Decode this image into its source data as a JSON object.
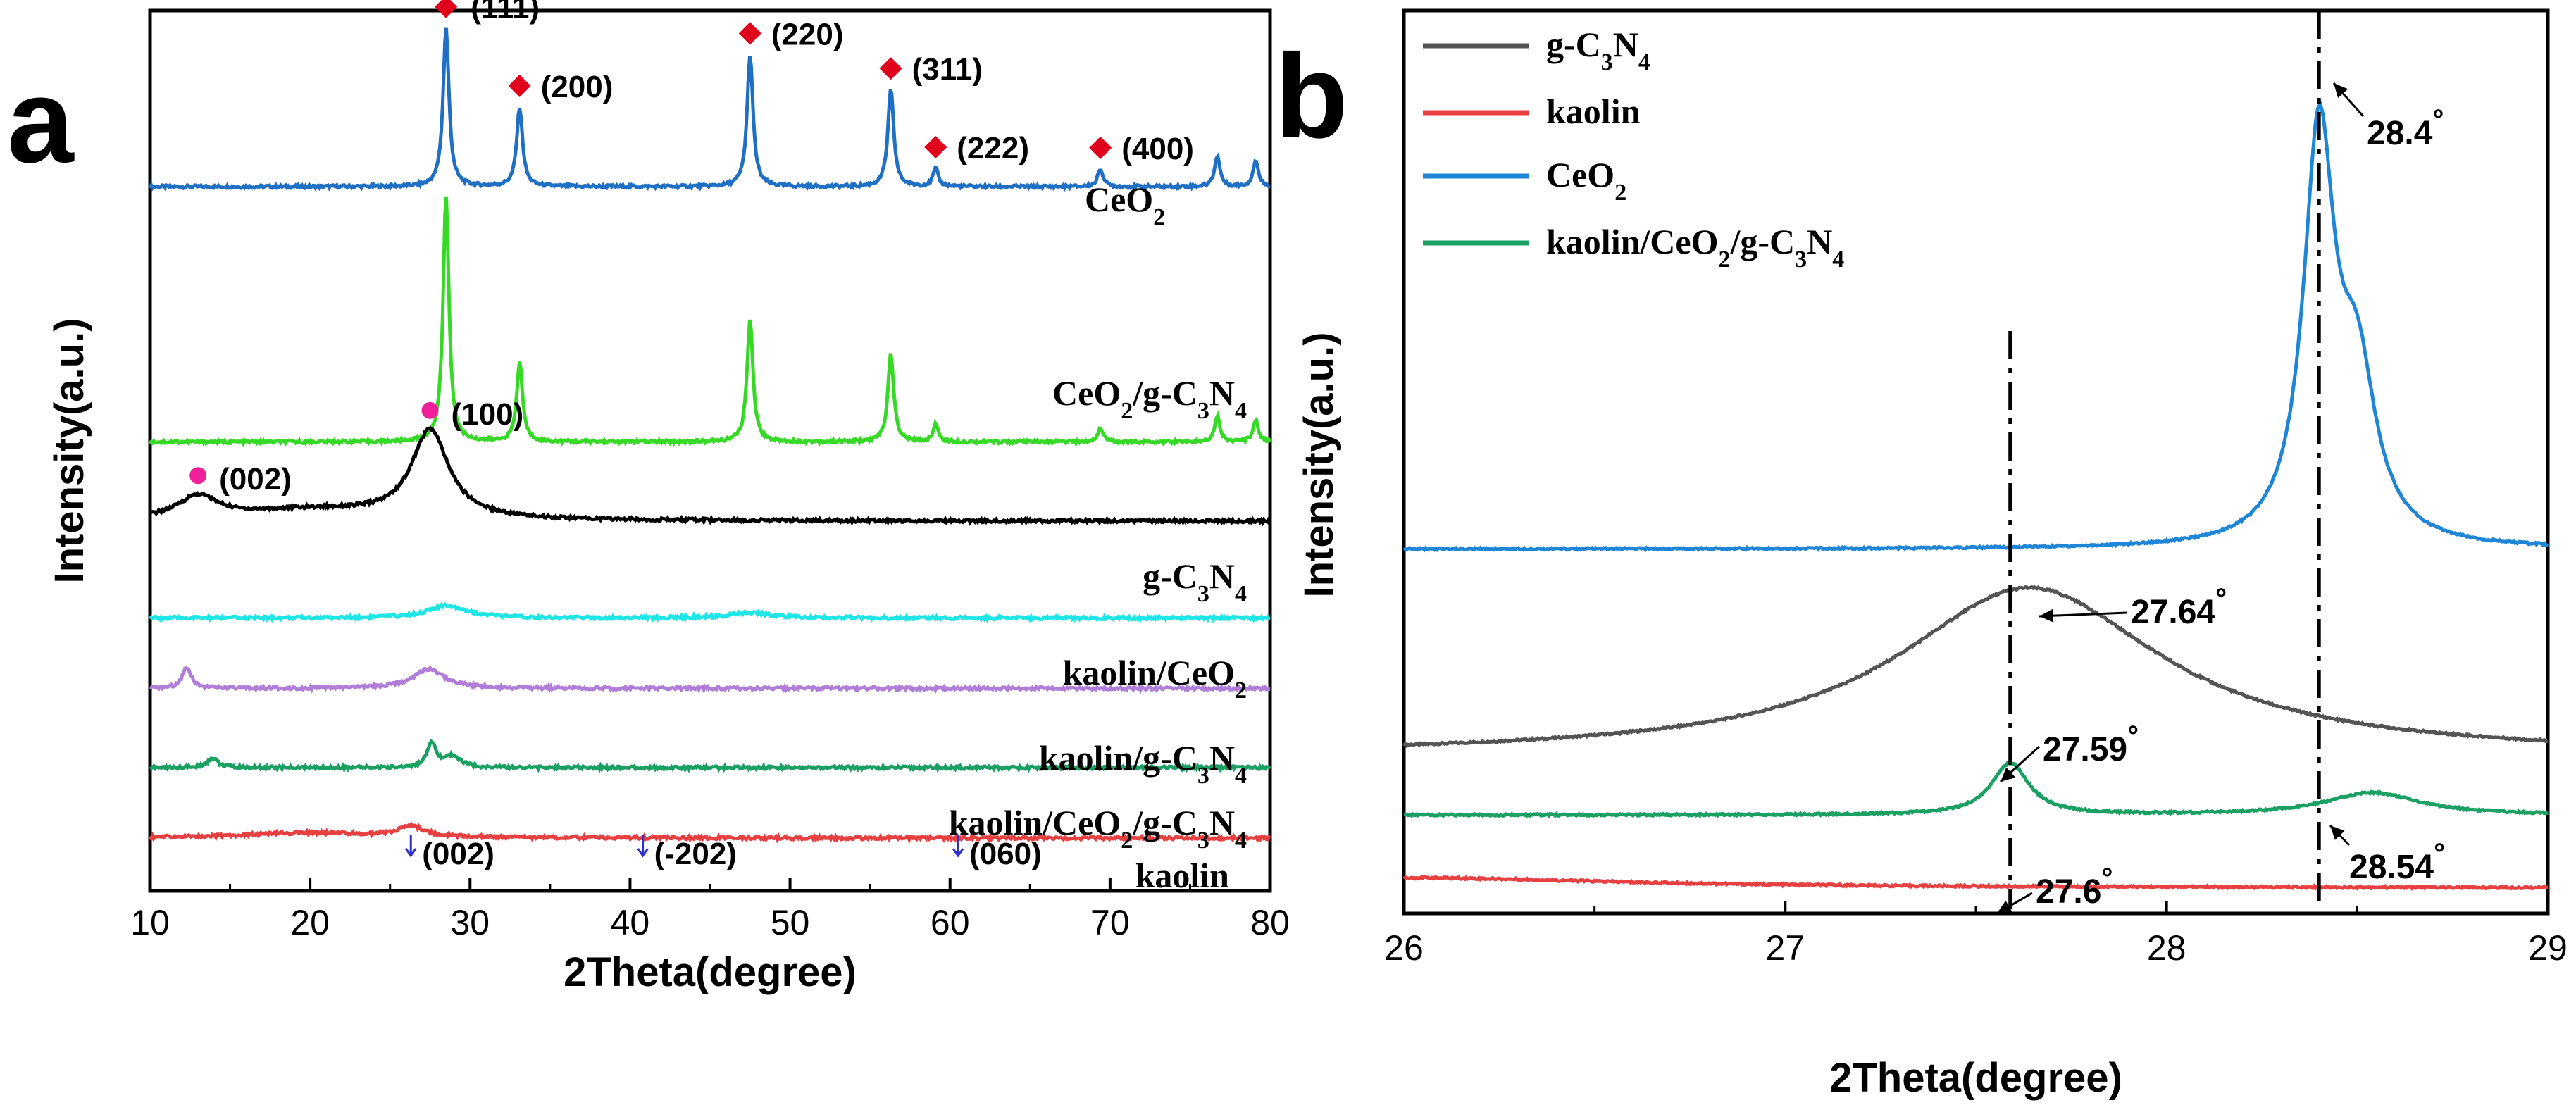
{
  "figure": {
    "panels": [
      "a",
      "b"
    ]
  },
  "chart_data": [
    {
      "panel": "a",
      "type": "line",
      "xlabel": "2Theta(degree)",
      "ylabel": "Intensity(a.u.)",
      "xlim": [
        10,
        80
      ],
      "xticks": [
        10,
        20,
        30,
        40,
        50,
        60,
        70,
        80
      ],
      "ylim": [
        0,
        100
      ],
      "series": [
        {
          "name": "CeO2",
          "label_main": "CeO",
          "label_sub": "2",
          "color": "#1f6fc4",
          "baseline": 80,
          "peaks": [
            [
              28.5,
              18,
              0.22
            ],
            [
              33.1,
              9,
              0.22
            ],
            [
              47.5,
              15,
              0.22
            ],
            [
              56.3,
              11,
              0.22
            ],
            [
              59.1,
              2,
              0.2
            ],
            [
              69.4,
              2,
              0.2
            ],
            [
              76.7,
              3.5,
              0.2
            ],
            [
              79.1,
              3,
              0.2
            ]
          ]
        },
        {
          "name": "CeO2/g-C3N4",
          "label_main": "CeO",
          "label_sub": "2",
          "label_tail": "/g-C",
          "label_sub2": "3",
          "label_tail2": "N",
          "label_sub3": "4",
          "color": "#35d926",
          "baseline": 51,
          "peaks": [
            [
              28.5,
              28,
              0.22
            ],
            [
              33.1,
              9,
              0.22
            ],
            [
              47.5,
              14,
              0.22
            ],
            [
              56.3,
              10,
              0.22
            ],
            [
              59.1,
              2,
              0.2
            ],
            [
              69.4,
              1.6,
              0.2
            ],
            [
              76.7,
              3,
              0.2
            ],
            [
              79.1,
              2.5,
              0.2
            ]
          ]
        },
        {
          "name": "g-C3N4",
          "color": "#000000",
          "baseline": 42,
          "peaks": [
            [
              13.0,
              2.5,
              1.5
            ],
            [
              20.0,
              1.2,
              6
            ],
            [
              27.5,
              10,
              1.4
            ]
          ]
        },
        {
          "name": "kaolin/CeO2",
          "color": "#1fe6e6",
          "baseline": 31,
          "peaks": [
            [
              28.6,
              1.4,
              1.5
            ],
            [
              47.5,
              0.6,
              1.5
            ]
          ]
        },
        {
          "name": "kaolin/g-C3N4",
          "color": "#b07ed8",
          "baseline": 23,
          "peaks": [
            [
              12.3,
              2.4,
              0.35
            ],
            [
              27.4,
              2.2,
              1.2
            ]
          ]
        },
        {
          "name": "kaolin/CeO2/g-C3N4",
          "color": "#1aa062",
          "baseline": 14,
          "peaks": [
            [
              13.9,
              1.1,
              0.4
            ],
            [
              27.6,
              2.6,
              0.35
            ],
            [
              28.9,
              1.3,
              0.6
            ]
          ]
        },
        {
          "name": "kaolin",
          "color": "#e84040",
          "baseline": 6,
          "peaks": [
            [
              20.0,
              0.6,
              5
            ],
            [
              26.3,
              1.2,
              1
            ]
          ]
        }
      ],
      "labels": {
        "ceo2": {
          "main": "CeO",
          "sub": "2"
        },
        "ceo2_gcn": {
          "main": "CeO",
          "sub1": "2",
          "mid": "/g-C",
          "sub2": "3",
          "mid2": "N",
          "sub3": "4"
        },
        "gcn": {
          "main": "g-C",
          "sub1": "3",
          "mid": "N",
          "sub2": "4"
        },
        "kaolin_ceo2": {
          "main": "kaolin/CeO",
          "sub1": "2"
        },
        "kaolin_gcn": {
          "main": "kaolin/g-C",
          "sub1": "3",
          "mid": "N",
          "sub2": "4"
        },
        "kaolin_ceo2_gcn": {
          "main": "kaolin/CeO",
          "sub1": "2",
          "mid": "/g-C",
          "sub2": "3",
          "mid2": "N",
          "sub3": "4"
        },
        "kaolin": "kaolin"
      },
      "annotations": {
        "ceo2_planes": [
          {
            "text": "(111)",
            "x": 28.5
          },
          {
            "text": "(200)",
            "x": 33.1
          },
          {
            "text": "(220)",
            "x": 47.5
          },
          {
            "text": "(311)",
            "x": 56.3
          },
          {
            "text": "(222)",
            "x": 59.1
          },
          {
            "text": "(400)",
            "x": 69.4
          }
        ],
        "gcn_planes": [
          {
            "text": "(002)",
            "x": 13.0
          },
          {
            "text": "(100)",
            "x": 27.5
          }
        ],
        "kaolin_planes": [
          {
            "text": "(002)",
            "x": 26.3
          },
          {
            "text": "(-202)",
            "x": 40.8
          },
          {
            "text": "(060)",
            "x": 60.5
          }
        ]
      }
    },
    {
      "panel": "b",
      "type": "line",
      "xlabel": "2Theta(degree)",
      "ylabel": "Intensity(a.u.)",
      "xlim": [
        26,
        29
      ],
      "xticks": [
        26,
        27,
        28,
        29
      ],
      "ylim": [
        0,
        100
      ],
      "legend": {
        "position": "top-left",
        "entries": [
          {
            "main": "g-C",
            "sub1": "3",
            "mid": "N",
            "sub2": "4",
            "color": "#545454"
          },
          {
            "main": "kaolin",
            "color": "#e84040"
          },
          {
            "main": "CeO",
            "sub1": "2",
            "color": "#1f85d6"
          },
          {
            "main": "kaolin/CeO",
            "sub1": "2",
            "mid": "/g-C",
            "sub2": "3",
            "mid2": "N",
            "sub3": "4",
            "color": "#1aa062"
          }
        ]
      },
      "series": [
        {
          "name": "g-C3N4",
          "color": "#545454",
          "baseline": 16,
          "peaks": [
            [
              27.64,
              19.5,
              0.42
            ]
          ]
        },
        {
          "name": "kaolin",
          "color": "#e84040",
          "baseline": 0.5,
          "peaks": [
            [
              26.0,
              1.2,
              0.7
            ]
          ]
        },
        {
          "name": "CeO2",
          "color": "#1f85d6",
          "baseline": 40,
          "peaks": [
            [
              28.4,
              47,
              0.05
            ],
            [
              28.5,
              18,
              0.06
            ]
          ]
        },
        {
          "name": "kaolin/CeO2/g-C3N4",
          "color": "#1aa062",
          "baseline": 9,
          "peaks": [
            [
              27.59,
              6,
              0.06
            ],
            [
              28.54,
              2.6,
              0.15
            ]
          ]
        }
      ],
      "dashdot_lines": [
        27.59,
        28.4
      ],
      "peak_labels": [
        {
          "text": "28.4",
          "x": 28.4
        },
        {
          "text": "27.64",
          "x": 27.64
        },
        {
          "text": "27.59",
          "x": 27.59
        },
        {
          "text": "28.54",
          "x": 28.54
        },
        {
          "text": "27.6",
          "x": 27.6
        }
      ],
      "degree_symbol": "°"
    }
  ]
}
